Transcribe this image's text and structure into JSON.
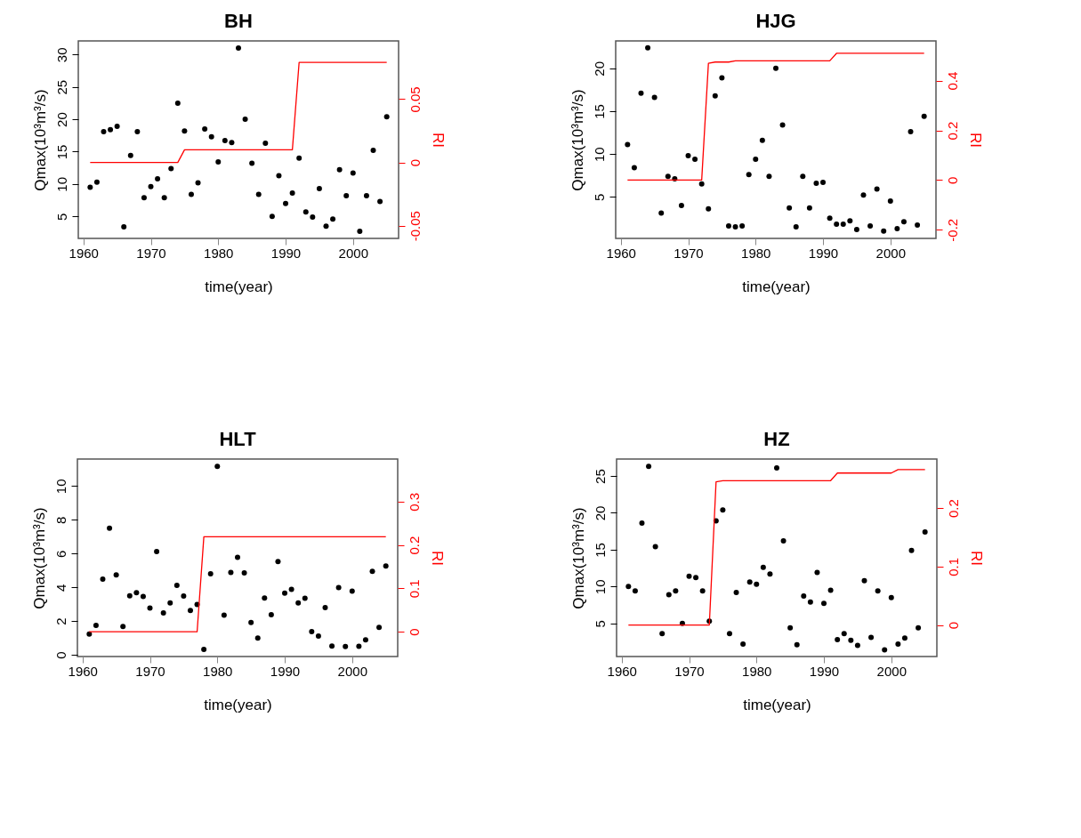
{
  "chart_data": [
    {
      "type": "scatter",
      "title": "BH",
      "xlabel": "time(year)",
      "ylabel": "Qmax(10³m³/s)",
      "y2label": "RI",
      "x": [
        1961,
        1962,
        1963,
        1964,
        1965,
        1966,
        1967,
        1968,
        1969,
        1970,
        1971,
        1972,
        1973,
        1974,
        1975,
        1976,
        1977,
        1978,
        1979,
        1980,
        1981,
        1982,
        1983,
        1984,
        1985,
        1986,
        1987,
        1988,
        1989,
        1990,
        1991,
        1992,
        1993,
        1994,
        1995,
        1996,
        1997,
        1998,
        1999,
        2000,
        2001,
        2002,
        2003,
        2004,
        2005
      ],
      "xlim": [
        1959.24,
        2006.76
      ],
      "xticks": [
        1960,
        1970,
        1980,
        1990,
        2000
      ],
      "ylim": [
        1.6,
        32.1
      ],
      "yticks": [
        5,
        10,
        15,
        20,
        25,
        30
      ],
      "y2lim": [
        -0.06,
        0.096
      ],
      "y2ticks": [
        -0.05,
        0,
        0.05
      ],
      "series": [
        {
          "type": "scatter",
          "marker": "circle",
          "color": "#000000",
          "values": [
            9.5,
            10.3,
            18.1,
            18.4,
            18.9,
            3.4,
            14.4,
            18.1,
            7.9,
            9.6,
            10.8,
            7.9,
            12.4,
            22.5,
            18.2,
            8.4,
            10.2,
            18.5,
            17.3,
            13.4,
            16.7,
            16.4,
            31.0,
            20.0,
            13.2,
            8.4,
            16.3,
            5.0,
            11.3,
            7.0,
            8.6,
            14.0,
            5.7,
            4.9,
            9.3,
            3.5,
            4.6,
            12.2,
            8.2,
            11.7,
            2.7,
            8.2,
            15.2,
            7.3,
            20.4
          ]
        },
        {
          "type": "line",
          "axis": "y2",
          "color": "#ff0000",
          "values": [
            0,
            0,
            0,
            0,
            0,
            0,
            0,
            0,
            0,
            0,
            0,
            0,
            0,
            0,
            0.01,
            0.01,
            0.01,
            0.01,
            0.01,
            0.01,
            0.01,
            0.01,
            0.01,
            0.01,
            0.01,
            0.01,
            0.01,
            0.01,
            0.01,
            0.01,
            0.01,
            0.079,
            0.079,
            0.079,
            0.079,
            0.079,
            0.079,
            0.079,
            0.079,
            0.079,
            0.079,
            0.079,
            0.079,
            0.079,
            0.079
          ]
        }
      ]
    },
    {
      "type": "scatter",
      "title": "HJG",
      "xlabel": "time(year)",
      "ylabel": "Qmax(10³m³/s)",
      "y2label": "RI",
      "x": [
        1961,
        1962,
        1963,
        1964,
        1965,
        1966,
        1967,
        1968,
        1969,
        1970,
        1971,
        1972,
        1973,
        1974,
        1975,
        1976,
        1977,
        1978,
        1979,
        1980,
        1981,
        1982,
        1983,
        1984,
        1985,
        1986,
        1987,
        1988,
        1989,
        1990,
        1991,
        1992,
        1993,
        1994,
        1995,
        1996,
        1997,
        1998,
        1999,
        2000,
        2001,
        2002,
        2003,
        2004,
        2005
      ],
      "xlim": [
        1959.24,
        2006.76
      ],
      "xticks": [
        1960,
        1970,
        1980,
        1990,
        2000
      ],
      "ylim": [
        0.15,
        23.2
      ],
      "yticks": [
        5,
        10,
        15,
        20
      ],
      "y2lim": [
        -0.235,
        0.56
      ],
      "y2ticks": [
        -0.2,
        0,
        0.2,
        0.4
      ],
      "series": [
        {
          "type": "scatter",
          "marker": "circle",
          "color": "#000000",
          "values": [
            11.1,
            8.4,
            17.1,
            22.4,
            16.6,
            3.1,
            7.4,
            7.1,
            4.0,
            9.8,
            9.4,
            6.5,
            3.6,
            16.8,
            18.9,
            1.6,
            1.5,
            1.6,
            7.6,
            9.4,
            11.6,
            7.4,
            20.0,
            13.4,
            3.7,
            1.5,
            7.4,
            3.7,
            6.6,
            6.7,
            2.5,
            1.8,
            1.8,
            2.2,
            1.2,
            5.2,
            1.6,
            5.9,
            1.0,
            4.5,
            1.3,
            2.1,
            12.6,
            1.7,
            14.4
          ]
        },
        {
          "type": "line",
          "axis": "y2",
          "color": "#ff0000",
          "values": [
            0,
            0,
            0,
            0,
            0,
            0,
            0,
            0,
            0,
            0,
            0,
            0,
            0.47,
            0.475,
            0.475,
            0.475,
            0.48,
            0.48,
            0.48,
            0.48,
            0.48,
            0.48,
            0.48,
            0.48,
            0.48,
            0.48,
            0.48,
            0.48,
            0.48,
            0.48,
            0.48,
            0.51,
            0.51,
            0.51,
            0.51,
            0.51,
            0.51,
            0.51,
            0.51,
            0.51,
            0.51,
            0.51,
            0.51,
            0.51,
            0.51
          ]
        }
      ]
    },
    {
      "type": "scatter",
      "title": "HLT",
      "xlabel": "time(year)",
      "ylabel": "Qmax(10³m³/s)",
      "y2label": "RI",
      "x": [
        1961,
        1962,
        1963,
        1964,
        1965,
        1966,
        1967,
        1968,
        1969,
        1970,
        1971,
        1972,
        1973,
        1974,
        1975,
        1976,
        1977,
        1978,
        1979,
        1980,
        1981,
        1982,
        1983,
        1984,
        1985,
        1986,
        1987,
        1988,
        1989,
        1990,
        1991,
        1992,
        1993,
        1994,
        1995,
        1996,
        1997,
        1998,
        1999,
        2000,
        2001,
        2002,
        2003,
        2004,
        2005
      ],
      "xlim": [
        1959.24,
        2006.76
      ],
      "xticks": [
        1960,
        1970,
        1980,
        1990,
        2000
      ],
      "ylim": [
        -0.1,
        11.6
      ],
      "yticks": [
        0,
        2,
        4,
        6,
        8,
        10
      ],
      "y2lim": [
        -0.057,
        0.398
      ],
      "y2ticks": [
        0,
        0.1,
        0.2,
        0.3
      ],
      "series": [
        {
          "type": "scatter",
          "marker": "circle",
          "color": "#000000",
          "values": [
            1.23,
            1.75,
            4.48,
            7.5,
            4.74,
            1.68,
            3.5,
            3.68,
            3.46,
            2.77,
            6.12,
            2.48,
            3.08,
            4.12,
            3.48,
            2.63,
            2.98,
            0.32,
            4.8,
            11.17,
            2.35,
            4.88,
            5.77,
            4.85,
            1.92,
            1.0,
            3.37,
            2.38,
            5.52,
            3.66,
            3.88,
            3.08,
            3.35,
            1.37,
            1.11,
            2.8,
            0.52,
            3.98,
            0.49,
            3.78,
            0.51,
            0.89,
            4.95,
            1.63,
            5.26
          ]
        },
        {
          "type": "line",
          "axis": "y2",
          "color": "#ff0000",
          "values": [
            0,
            0,
            0,
            0,
            0,
            0,
            0,
            0,
            0,
            0,
            0,
            0,
            0,
            0,
            0,
            0,
            0,
            0.219,
            0.219,
            0.219,
            0.219,
            0.219,
            0.219,
            0.219,
            0.219,
            0.219,
            0.219,
            0.219,
            0.219,
            0.219,
            0.219,
            0.219,
            0.219,
            0.219,
            0.219,
            0.219,
            0.219,
            0.219,
            0.219,
            0.219,
            0.219,
            0.219,
            0.219,
            0.219,
            0.219
          ]
        }
      ]
    },
    {
      "type": "scatter",
      "title": "HZ",
      "xlabel": "time(year)",
      "ylabel": "Qmax(10³m³/s)",
      "y2label": "RI",
      "x": [
        1961,
        1962,
        1963,
        1964,
        1965,
        1966,
        1967,
        1968,
        1969,
        1970,
        1971,
        1972,
        1973,
        1974,
        1975,
        1976,
        1977,
        1978,
        1979,
        1980,
        1981,
        1982,
        1983,
        1984,
        1985,
        1986,
        1987,
        1988,
        1989,
        1990,
        1991,
        1992,
        1993,
        1994,
        1995,
        1996,
        1997,
        1998,
        1999,
        2000,
        2001,
        2002,
        2003,
        2004,
        2005
      ],
      "xlim": [
        1959.24,
        2006.76
      ],
      "xticks": [
        1960,
        1970,
        1980,
        1990,
        2000
      ],
      "ylim": [
        0.5,
        27.3
      ],
      "yticks": [
        5,
        10,
        15,
        20,
        25
      ],
      "y2lim": [
        -0.054,
        0.284
      ],
      "y2ticks": [
        0,
        0.1,
        0.2
      ],
      "series": [
        {
          "type": "scatter",
          "marker": "circle",
          "color": "#000000",
          "values": [
            10.0,
            9.4,
            18.6,
            26.3,
            15.4,
            3.6,
            8.9,
            9.4,
            5.0,
            11.4,
            11.2,
            9.4,
            5.3,
            18.9,
            20.4,
            3.6,
            9.2,
            2.2,
            10.6,
            10.3,
            12.6,
            11.7,
            26.1,
            16.2,
            4.4,
            2.1,
            8.7,
            7.9,
            11.9,
            7.7,
            9.5,
            2.8,
            3.6,
            2.7,
            2.0,
            10.8,
            3.1,
            9.4,
            1.4,
            8.5,
            2.2,
            3.0,
            14.9,
            4.4,
            17.4
          ]
        },
        {
          "type": "line",
          "axis": "y2",
          "color": "#ff0000",
          "values": [
            0,
            0,
            0,
            0,
            0,
            0,
            0,
            0,
            0,
            0,
            0,
            0,
            0,
            0.245,
            0.247,
            0.247,
            0.247,
            0.247,
            0.247,
            0.247,
            0.247,
            0.247,
            0.247,
            0.247,
            0.247,
            0.247,
            0.247,
            0.247,
            0.247,
            0.247,
            0.247,
            0.26,
            0.26,
            0.26,
            0.26,
            0.26,
            0.26,
            0.26,
            0.26,
            0.26,
            0.266,
            0.266,
            0.266,
            0.266,
            0.266
          ]
        }
      ]
    }
  ]
}
